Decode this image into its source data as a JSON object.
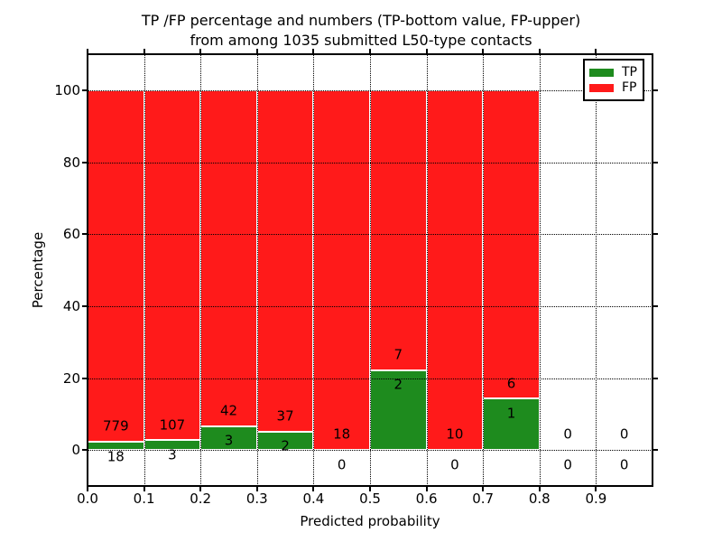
{
  "chart_data": {
    "type": "bar",
    "stacked": true,
    "title_line1": "TP /FP percentage and numbers (TP-bottom value, FP-upper)",
    "title_line2": "from among 1035 submitted L50-type contacts",
    "xlabel": "Predicted probability",
    "ylabel": "Percentage",
    "xlim": [
      0.0,
      1.0
    ],
    "ylim": [
      -10,
      110
    ],
    "grid": true,
    "grid_style": "dotted",
    "x_tick_labels": [
      "0.0",
      "0.1",
      "0.2",
      "0.3",
      "0.4",
      "0.5",
      "0.6",
      "0.7",
      "0.8",
      "0.9"
    ],
    "y_ticks": [
      0,
      20,
      40,
      60,
      80,
      100
    ],
    "bin_width": 0.1,
    "bins": [
      0.0,
      0.1,
      0.2,
      0.3,
      0.4,
      0.5,
      0.6,
      0.7,
      0.8,
      0.9
    ],
    "series": [
      {
        "name": "TP",
        "color": "#1e8b1e",
        "values": [
          18,
          3,
          3,
          2,
          0,
          2,
          0,
          1,
          0,
          0
        ]
      },
      {
        "name": "FP",
        "color": "#ff1a1a",
        "values": [
          779,
          107,
          42,
          37,
          18,
          7,
          10,
          6,
          0,
          0
        ]
      }
    ],
    "bar_percentages_tp": [
      2.26,
      2.73,
      6.67,
      5.13,
      0,
      22.22,
      0,
      14.29,
      0,
      0
    ],
    "legend": {
      "position": "upper right",
      "entries": [
        {
          "label": "TP",
          "color": "#1e8b1e"
        },
        {
          "label": "FP",
          "color": "#ff1a1a"
        }
      ]
    }
  }
}
